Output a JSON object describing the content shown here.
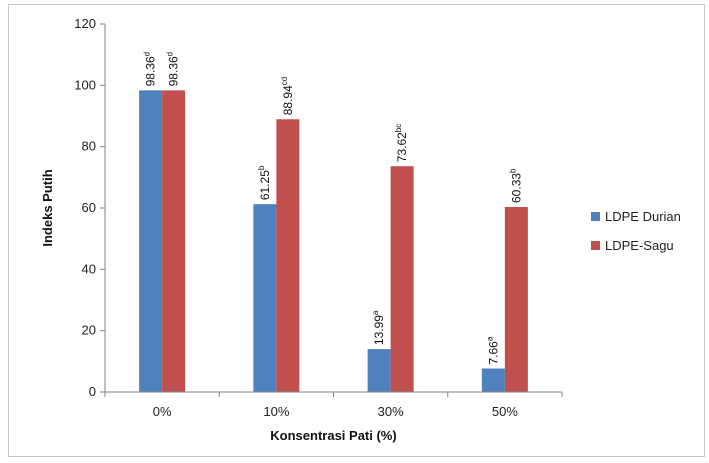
{
  "chart_data": {
    "type": "bar",
    "xlabel": "Konsentrasi Pati (%)",
    "ylabel": "Indeks Putih",
    "ylim": [
      0,
      120
    ],
    "ytick_step": 20,
    "yticks": [
      "0",
      "20",
      "40",
      "60",
      "80",
      "100",
      "120"
    ],
    "categories": [
      "0%",
      "10%",
      "30%",
      "50%"
    ],
    "legend_position": "right",
    "series": [
      {
        "name": "LDPE Durian",
        "color": "#4F81BD",
        "values": [
          98.36,
          61.25,
          13.99,
          7.66
        ],
        "labels": [
          "98.36",
          "61.25",
          "13.99",
          "7.66"
        ],
        "superscripts": [
          "d",
          "b",
          "a",
          "a"
        ]
      },
      {
        "name": "LDPE-Sagu",
        "color": "#C0504D",
        "values": [
          98.36,
          88.94,
          73.62,
          60.33
        ],
        "labels": [
          "98.36",
          "88.94",
          "73.62",
          "60.33"
        ],
        "superscripts": [
          "d",
          "cd",
          "bc",
          "b"
        ]
      }
    ]
  }
}
